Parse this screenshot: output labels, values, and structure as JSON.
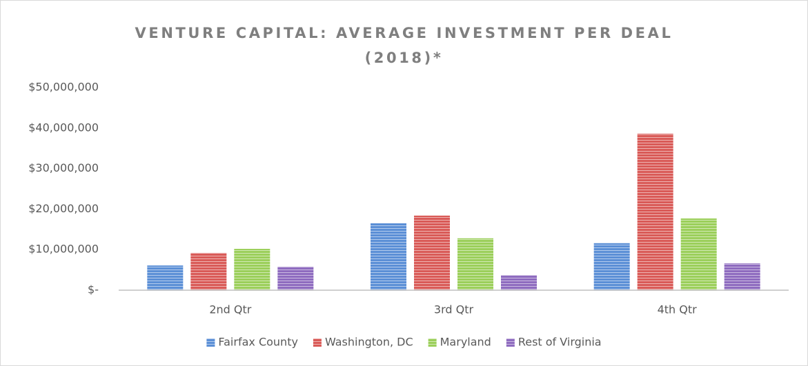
{
  "chart_data": {
    "type": "bar",
    "title": "VENTURE CAPITAL: AVERAGE INVESTMENT PER DEAL (2018)*",
    "categories": [
      "2nd Qtr",
      "3rd Qtr",
      "4th Qtr"
    ],
    "series": [
      {
        "name": "Fairfax County",
        "color": "#5b8fd6",
        "values": [
          6100000,
          16500000,
          11600000
        ]
      },
      {
        "name": "Washington, DC",
        "color": "#d95a57",
        "values": [
          9200000,
          18400000,
          38600000
        ]
      },
      {
        "name": "Maryland",
        "color": "#9bcf5a",
        "values": [
          10200000,
          12800000,
          17700000
        ]
      },
      {
        "name": "Rest of Virginia",
        "color": "#8e6bbf",
        "values": [
          5800000,
          3700000,
          6600000
        ]
      }
    ],
    "ylim": [
      0,
      50000000
    ],
    "yticks": [
      {
        "value": 0,
        "label": "$-"
      },
      {
        "value": 10000000,
        "label": "$10,000,000"
      },
      {
        "value": 20000000,
        "label": "$20,000,000"
      },
      {
        "value": 30000000,
        "label": "$30,000,000"
      },
      {
        "value": 40000000,
        "label": "$40,000,000"
      },
      {
        "value": 50000000,
        "label": "$50,000,000"
      }
    ],
    "grid": false,
    "legend": "bottom"
  }
}
